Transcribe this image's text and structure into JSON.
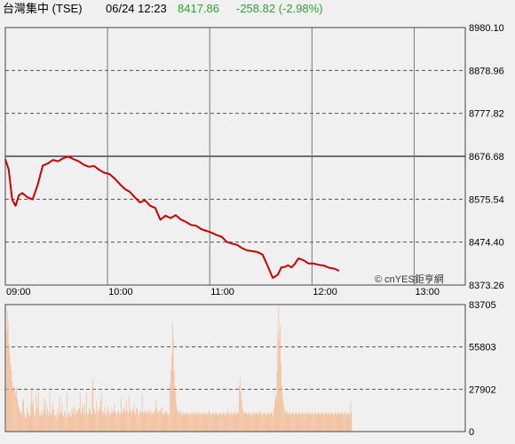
{
  "header": {
    "index_name": "台灣集中 (TSE)",
    "datetime": "06/24 12:23",
    "price": "8417.86",
    "change": "-258.82 (-2.98%)",
    "price_color": "#2aa52a",
    "change_color": "#2aa52a"
  },
  "credit": "© cnYES鉅亨網",
  "chart_data": [
    {
      "type": "line",
      "title": "",
      "xlabel": "",
      "ylabel": "",
      "x_ticks": [
        "09:00",
        "10:00",
        "11:00",
        "12:00",
        "13:00"
      ],
      "y_ticks": [
        "8980.10",
        "8878.96",
        "8777.82",
        "8676.68",
        "8575.54",
        "8474.40",
        "8373.26"
      ],
      "ylim": [
        8373.26,
        8980.1
      ],
      "reference_level": 8676.68,
      "grid": true,
      "line_color": "#cc0000",
      "series": [
        {
          "x": [
            "09:00",
            "09:02",
            "09:04",
            "09:06",
            "09:08",
            "09:10",
            "09:13",
            "09:16",
            "09:19",
            "09:22",
            "09:25",
            "09:28",
            "09:31",
            "09:34",
            "09:37",
            "09:40",
            "09:43",
            "09:46",
            "09:49",
            "09:52",
            "09:55",
            "09:58",
            "10:01",
            "10:04",
            "10:07",
            "10:10",
            "10:13",
            "10:16",
            "10:19",
            "10:22",
            "10:25",
            "10:28",
            "10:31",
            "10:34",
            "10:37",
            "10:40",
            "10:43",
            "10:46",
            "10:49",
            "10:52",
            "10:55",
            "10:58",
            "11:01",
            "11:04",
            "11:07",
            "11:10",
            "11:13",
            "11:16",
            "11:19",
            "11:22",
            "11:25",
            "11:28",
            "11:31",
            "11:34",
            "11:37",
            "11:40",
            "11:42",
            "11:44",
            "11:46",
            "11:48",
            "11:50",
            "11:52",
            "11:55",
            "11:58",
            "12:01",
            "12:04",
            "12:07",
            "12:10",
            "12:13",
            "12:16"
          ],
          "values": [
            8670,
            8645,
            8575,
            8560,
            8585,
            8590,
            8580,
            8575,
            8610,
            8655,
            8660,
            8668,
            8665,
            8672,
            8676,
            8670,
            8665,
            8657,
            8652,
            8654,
            8645,
            8638,
            8635,
            8625,
            8612,
            8600,
            8593,
            8580,
            8568,
            8573,
            8560,
            8555,
            8527,
            8537,
            8531,
            8538,
            8528,
            8522,
            8515,
            8513,
            8505,
            8501,
            8497,
            8491,
            8487,
            8475,
            8471,
            8468,
            8460,
            8455,
            8453,
            8451,
            8445,
            8418,
            8390,
            8398,
            8415,
            8416,
            8420,
            8415,
            8423,
            8436,
            8432,
            8424,
            8424,
            8421,
            8419,
            8414,
            8412,
            8407
          ]
        }
      ]
    },
    {
      "type": "bar",
      "title": "",
      "xlabel": "",
      "ylabel": "",
      "y_ticks": [
        "83705",
        "55803",
        "27902",
        "0"
      ],
      "ylim": [
        0,
        83705
      ],
      "grid": true,
      "bar_color": "#f4b183",
      "series": [
        {
          "name": "",
          "values": [
            66000,
            80000,
            72000,
            58000,
            51000,
            44000,
            40000,
            33000,
            28000,
            30000,
            28000,
            25000,
            29000,
            22000,
            18000,
            16000,
            14000,
            12000,
            13000,
            11000,
            20000,
            22000,
            12000,
            10000,
            9000,
            16000,
            13000,
            12000,
            10000,
            11000,
            19000,
            29000,
            17000,
            21000,
            12000,
            10000,
            25000,
            15000,
            18000,
            26000,
            12000,
            10000,
            11000,
            14000,
            12000,
            11000,
            22000,
            15000,
            20000,
            11000,
            16000,
            13000,
            10000,
            26000,
            12000,
            11000,
            14000,
            20000,
            15000,
            11000,
            10000,
            12000,
            9000,
            15000,
            11000,
            24000,
            13000,
            12000,
            19000,
            11000,
            10000,
            14000,
            12000,
            9000,
            25000,
            11000,
            12000,
            13000,
            10000,
            10000,
            15000,
            12000,
            17000,
            11000,
            16000,
            13000,
            12000,
            14000,
            15000,
            15000,
            25000,
            12000,
            13000,
            17000,
            16000,
            11000,
            18000,
            13000,
            26000,
            11000,
            12000,
            16000,
            15000,
            12000,
            11000,
            30000,
            35000,
            15000,
            13000,
            12000,
            20000,
            14000,
            12000,
            16000,
            14000,
            20000,
            25000,
            14000,
            11000,
            13000,
            16000,
            12000,
            11000,
            14000,
            17000,
            13000,
            11000,
            12000,
            15000,
            13000,
            12000,
            14000,
            18000,
            13000,
            12000,
            11000,
            13000,
            14000,
            12000,
            11000,
            22000,
            13000,
            12000,
            15000,
            16000,
            12000,
            14000,
            20000,
            13000,
            12000,
            24000,
            15000,
            13000,
            12000,
            15000,
            14000,
            17000,
            13000,
            11000,
            15000,
            16000,
            12000,
            11000,
            14000,
            13000,
            12000,
            25000,
            13000,
            12000,
            14000,
            13000,
            12000,
            13000,
            14000,
            12000,
            13000,
            14000,
            12000,
            11000,
            13000,
            12000,
            13000,
            14000,
            21000,
            16000,
            13000,
            12000,
            14000,
            13000,
            15000,
            16000,
            12000,
            11000,
            13000,
            12000,
            14000,
            13000,
            12000,
            11000,
            12000,
            32000,
            40000,
            50000,
            72000,
            62000,
            40000,
            30000,
            25000,
            18000,
            15000,
            13000,
            12000,
            14000,
            13000,
            12000,
            11000,
            13000,
            12000,
            11000,
            12000,
            13000,
            12000,
            11000,
            12000,
            11000,
            13000,
            12000,
            11000,
            12000,
            13000,
            12000,
            11000,
            13000,
            12000,
            11000,
            14000,
            12000,
            11000,
            12000,
            13000,
            12000,
            11000,
            12000,
            13000,
            12000,
            11000,
            12000,
            13000,
            14000,
            12000,
            11000,
            12000,
            13000,
            12000,
            11000,
            12000,
            13000,
            12000,
            11000,
            12000,
            11000,
            13000,
            12000,
            11000,
            12000,
            13000,
            12000,
            11000,
            12000,
            11000,
            13000,
            15000,
            12000,
            11000,
            12000,
            13000,
            12000,
            11000,
            12000,
            14000,
            12000,
            11000,
            12000,
            13000,
            12000,
            30000,
            35000,
            26000,
            20000,
            15000,
            13000,
            12000,
            12000,
            13000,
            12000,
            11000,
            12000,
            13000,
            12000,
            11000,
            12000,
            11000,
            13000,
            12000,
            11000,
            12000,
            13000,
            12000,
            11000,
            12000,
            13000,
            14000,
            12000,
            11000,
            12000,
            13000,
            12000,
            11000,
            12000,
            11000,
            13000,
            12000,
            11000,
            12000,
            13000,
            12000,
            11000,
            15000,
            20000,
            25000,
            22000,
            40000,
            65000,
            83000,
            60000,
            70000,
            45000,
            30000,
            22000,
            18000,
            15000,
            13000,
            12000,
            14000,
            12000,
            11000,
            13000,
            12000,
            11000,
            12000,
            13000,
            12000,
            11000,
            12000,
            13000,
            12000,
            11000,
            12000,
            13000,
            12000,
            11000,
            12000,
            13000,
            12000,
            11000,
            12000,
            13000,
            12000,
            11000,
            12000,
            13000,
            12000,
            11000,
            12000,
            13000,
            12000,
            11000,
            12000,
            13000,
            12000,
            11000,
            12000,
            13000,
            12000,
            11000,
            12000,
            13000,
            12000,
            11000,
            12000,
            13000,
            12000,
            11000,
            12000,
            13000,
            12000,
            11000,
            12000,
            13000,
            12000,
            11000,
            12000,
            13000,
            12000,
            11000,
            12000,
            13000,
            12000,
            11000,
            12000,
            13000,
            12000,
            11000,
            12000,
            13000,
            12000,
            11000,
            12000,
            13000,
            12000,
            11000,
            20000,
            13000
          ]
        }
      ]
    }
  ]
}
